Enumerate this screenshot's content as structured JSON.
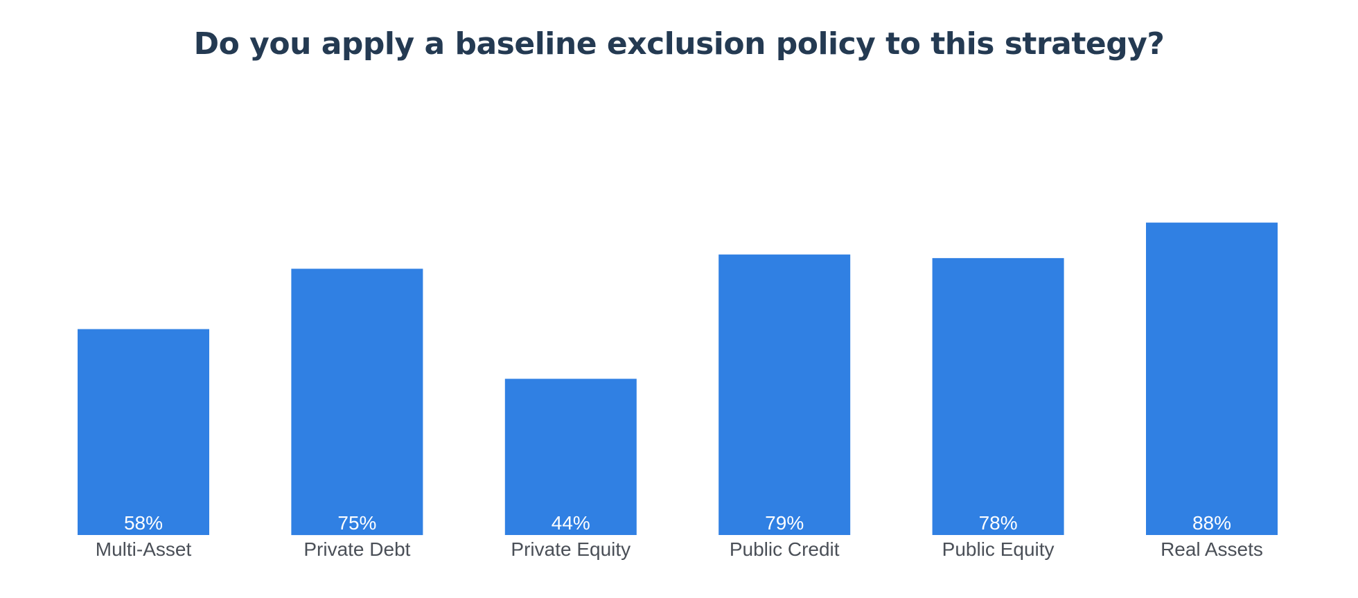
{
  "chart_data": {
    "type": "bar",
    "title": "Do you apply a baseline exclusion policy to this strategy?",
    "categories": [
      "Multi-Asset",
      "Private Debt",
      "Private Equity",
      "Public Credit",
      "Public Equity",
      "Real Assets"
    ],
    "values": [
      58,
      75,
      44,
      79,
      78,
      88
    ],
    "value_labels": [
      "58%",
      "75%",
      "44%",
      "79%",
      "78%",
      "88%"
    ],
    "ylim": [
      0,
      100
    ],
    "grid": false,
    "legend": "none",
    "bar_color": "#3080e3",
    "value_label_color": "#ffffff",
    "category_label_color": "#4a4f57",
    "title_color": "#243a52"
  }
}
